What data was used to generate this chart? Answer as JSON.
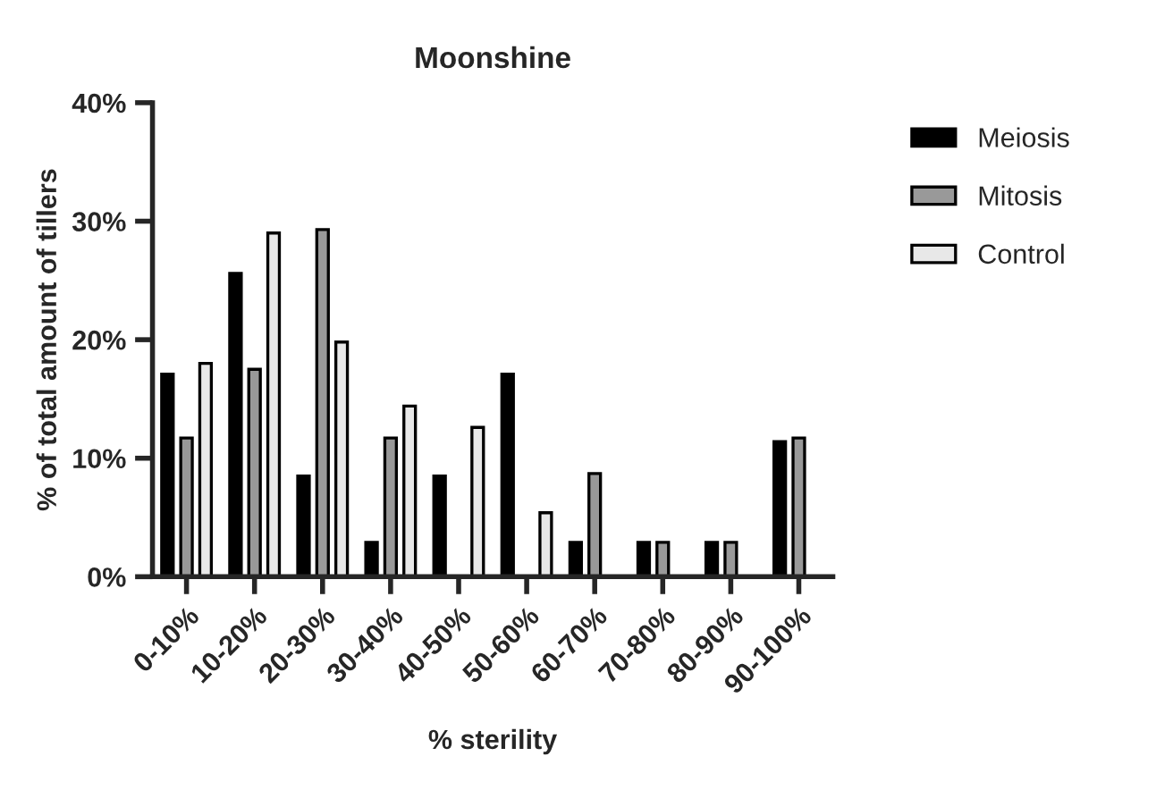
{
  "chart_data": {
    "type": "bar",
    "title": "Moonshine",
    "xlabel": "% sterility",
    "ylabel": "% of total amount of tillers",
    "categories": [
      "0-10%",
      "10-20%",
      "20-30%",
      "30-40%",
      "40-50%",
      "50-60%",
      "60-70%",
      "70-80%",
      "80-90%",
      "90-100%"
    ],
    "series": [
      {
        "name": "Meiosis",
        "color": "#000000",
        "values": [
          17.1,
          25.6,
          8.5,
          2.9,
          8.5,
          17.1,
          2.9,
          2.9,
          2.9,
          11.4
        ]
      },
      {
        "name": "Mitosis",
        "color": "#999999",
        "values": [
          11.7,
          17.5,
          29.3,
          11.7,
          0,
          0,
          8.7,
          2.9,
          2.9,
          11.7
        ]
      },
      {
        "name": "Control",
        "color": "#e8e8e8",
        "values": [
          18.0,
          29.0,
          19.8,
          14.4,
          12.6,
          5.4,
          0,
          0,
          0,
          0
        ]
      }
    ],
    "ylim": [
      0,
      40
    ],
    "yticks": [
      {
        "value": 0,
        "label": "0%"
      },
      {
        "value": 10,
        "label": "10%"
      },
      {
        "value": 20,
        "label": "20%"
      },
      {
        "value": 30,
        "label": "30%"
      },
      {
        "value": 40,
        "label": "40%"
      }
    ],
    "grid": false,
    "legend": "top right"
  }
}
